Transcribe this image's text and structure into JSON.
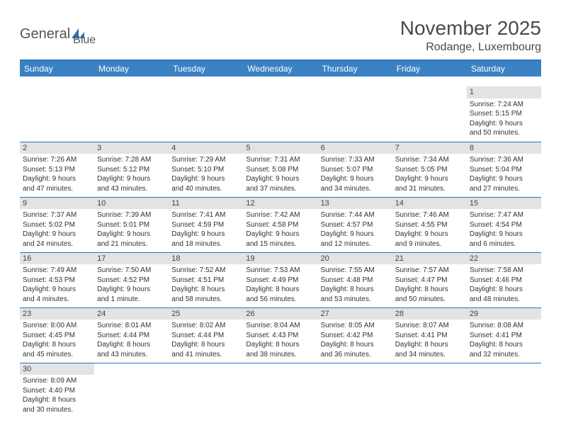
{
  "logo": {
    "text1": "General",
    "text2": "Blue"
  },
  "header": {
    "month_title": "November 2025",
    "location": "Rodange, Luxembourg"
  },
  "colors": {
    "header_bg": "#3b82c4",
    "header_text": "#ffffff",
    "rule": "#2a75bb",
    "daynum_bg": "#e3e3e3",
    "text": "#333333"
  },
  "weekdays": [
    "Sunday",
    "Monday",
    "Tuesday",
    "Wednesday",
    "Thursday",
    "Friday",
    "Saturday"
  ],
  "weeks": [
    [
      {
        "n": "",
        "sr": "",
        "ss": "",
        "dl1": "",
        "dl2": ""
      },
      {
        "n": "",
        "sr": "",
        "ss": "",
        "dl1": "",
        "dl2": ""
      },
      {
        "n": "",
        "sr": "",
        "ss": "",
        "dl1": "",
        "dl2": ""
      },
      {
        "n": "",
        "sr": "",
        "ss": "",
        "dl1": "",
        "dl2": ""
      },
      {
        "n": "",
        "sr": "",
        "ss": "",
        "dl1": "",
        "dl2": ""
      },
      {
        "n": "",
        "sr": "",
        "ss": "",
        "dl1": "",
        "dl2": ""
      },
      {
        "n": "1",
        "sr": "Sunrise: 7:24 AM",
        "ss": "Sunset: 5:15 PM",
        "dl1": "Daylight: 9 hours",
        "dl2": "and 50 minutes."
      }
    ],
    [
      {
        "n": "2",
        "sr": "Sunrise: 7:26 AM",
        "ss": "Sunset: 5:13 PM",
        "dl1": "Daylight: 9 hours",
        "dl2": "and 47 minutes."
      },
      {
        "n": "3",
        "sr": "Sunrise: 7:28 AM",
        "ss": "Sunset: 5:12 PM",
        "dl1": "Daylight: 9 hours",
        "dl2": "and 43 minutes."
      },
      {
        "n": "4",
        "sr": "Sunrise: 7:29 AM",
        "ss": "Sunset: 5:10 PM",
        "dl1": "Daylight: 9 hours",
        "dl2": "and 40 minutes."
      },
      {
        "n": "5",
        "sr": "Sunrise: 7:31 AM",
        "ss": "Sunset: 5:08 PM",
        "dl1": "Daylight: 9 hours",
        "dl2": "and 37 minutes."
      },
      {
        "n": "6",
        "sr": "Sunrise: 7:33 AM",
        "ss": "Sunset: 5:07 PM",
        "dl1": "Daylight: 9 hours",
        "dl2": "and 34 minutes."
      },
      {
        "n": "7",
        "sr": "Sunrise: 7:34 AM",
        "ss": "Sunset: 5:05 PM",
        "dl1": "Daylight: 9 hours",
        "dl2": "and 31 minutes."
      },
      {
        "n": "8",
        "sr": "Sunrise: 7:36 AM",
        "ss": "Sunset: 5:04 PM",
        "dl1": "Daylight: 9 hours",
        "dl2": "and 27 minutes."
      }
    ],
    [
      {
        "n": "9",
        "sr": "Sunrise: 7:37 AM",
        "ss": "Sunset: 5:02 PM",
        "dl1": "Daylight: 9 hours",
        "dl2": "and 24 minutes."
      },
      {
        "n": "10",
        "sr": "Sunrise: 7:39 AM",
        "ss": "Sunset: 5:01 PM",
        "dl1": "Daylight: 9 hours",
        "dl2": "and 21 minutes."
      },
      {
        "n": "11",
        "sr": "Sunrise: 7:41 AM",
        "ss": "Sunset: 4:59 PM",
        "dl1": "Daylight: 9 hours",
        "dl2": "and 18 minutes."
      },
      {
        "n": "12",
        "sr": "Sunrise: 7:42 AM",
        "ss": "Sunset: 4:58 PM",
        "dl1": "Daylight: 9 hours",
        "dl2": "and 15 minutes."
      },
      {
        "n": "13",
        "sr": "Sunrise: 7:44 AM",
        "ss": "Sunset: 4:57 PM",
        "dl1": "Daylight: 9 hours",
        "dl2": "and 12 minutes."
      },
      {
        "n": "14",
        "sr": "Sunrise: 7:46 AM",
        "ss": "Sunset: 4:55 PM",
        "dl1": "Daylight: 9 hours",
        "dl2": "and 9 minutes."
      },
      {
        "n": "15",
        "sr": "Sunrise: 7:47 AM",
        "ss": "Sunset: 4:54 PM",
        "dl1": "Daylight: 9 hours",
        "dl2": "and 6 minutes."
      }
    ],
    [
      {
        "n": "16",
        "sr": "Sunrise: 7:49 AM",
        "ss": "Sunset: 4:53 PM",
        "dl1": "Daylight: 9 hours",
        "dl2": "and 4 minutes."
      },
      {
        "n": "17",
        "sr": "Sunrise: 7:50 AM",
        "ss": "Sunset: 4:52 PM",
        "dl1": "Daylight: 9 hours",
        "dl2": "and 1 minute."
      },
      {
        "n": "18",
        "sr": "Sunrise: 7:52 AM",
        "ss": "Sunset: 4:51 PM",
        "dl1": "Daylight: 8 hours",
        "dl2": "and 58 minutes."
      },
      {
        "n": "19",
        "sr": "Sunrise: 7:53 AM",
        "ss": "Sunset: 4:49 PM",
        "dl1": "Daylight: 8 hours",
        "dl2": "and 56 minutes."
      },
      {
        "n": "20",
        "sr": "Sunrise: 7:55 AM",
        "ss": "Sunset: 4:48 PM",
        "dl1": "Daylight: 8 hours",
        "dl2": "and 53 minutes."
      },
      {
        "n": "21",
        "sr": "Sunrise: 7:57 AM",
        "ss": "Sunset: 4:47 PM",
        "dl1": "Daylight: 8 hours",
        "dl2": "and 50 minutes."
      },
      {
        "n": "22",
        "sr": "Sunrise: 7:58 AM",
        "ss": "Sunset: 4:46 PM",
        "dl1": "Daylight: 8 hours",
        "dl2": "and 48 minutes."
      }
    ],
    [
      {
        "n": "23",
        "sr": "Sunrise: 8:00 AM",
        "ss": "Sunset: 4:45 PM",
        "dl1": "Daylight: 8 hours",
        "dl2": "and 45 minutes."
      },
      {
        "n": "24",
        "sr": "Sunrise: 8:01 AM",
        "ss": "Sunset: 4:44 PM",
        "dl1": "Daylight: 8 hours",
        "dl2": "and 43 minutes."
      },
      {
        "n": "25",
        "sr": "Sunrise: 8:02 AM",
        "ss": "Sunset: 4:44 PM",
        "dl1": "Daylight: 8 hours",
        "dl2": "and 41 minutes."
      },
      {
        "n": "26",
        "sr": "Sunrise: 8:04 AM",
        "ss": "Sunset: 4:43 PM",
        "dl1": "Daylight: 8 hours",
        "dl2": "and 38 minutes."
      },
      {
        "n": "27",
        "sr": "Sunrise: 8:05 AM",
        "ss": "Sunset: 4:42 PM",
        "dl1": "Daylight: 8 hours",
        "dl2": "and 36 minutes."
      },
      {
        "n": "28",
        "sr": "Sunrise: 8:07 AM",
        "ss": "Sunset: 4:41 PM",
        "dl1": "Daylight: 8 hours",
        "dl2": "and 34 minutes."
      },
      {
        "n": "29",
        "sr": "Sunrise: 8:08 AM",
        "ss": "Sunset: 4:41 PM",
        "dl1": "Daylight: 8 hours",
        "dl2": "and 32 minutes."
      }
    ],
    [
      {
        "n": "30",
        "sr": "Sunrise: 8:09 AM",
        "ss": "Sunset: 4:40 PM",
        "dl1": "Daylight: 8 hours",
        "dl2": "and 30 minutes."
      },
      {
        "n": "",
        "sr": "",
        "ss": "",
        "dl1": "",
        "dl2": ""
      },
      {
        "n": "",
        "sr": "",
        "ss": "",
        "dl1": "",
        "dl2": ""
      },
      {
        "n": "",
        "sr": "",
        "ss": "",
        "dl1": "",
        "dl2": ""
      },
      {
        "n": "",
        "sr": "",
        "ss": "",
        "dl1": "",
        "dl2": ""
      },
      {
        "n": "",
        "sr": "",
        "ss": "",
        "dl1": "",
        "dl2": ""
      },
      {
        "n": "",
        "sr": "",
        "ss": "",
        "dl1": "",
        "dl2": ""
      }
    ]
  ]
}
